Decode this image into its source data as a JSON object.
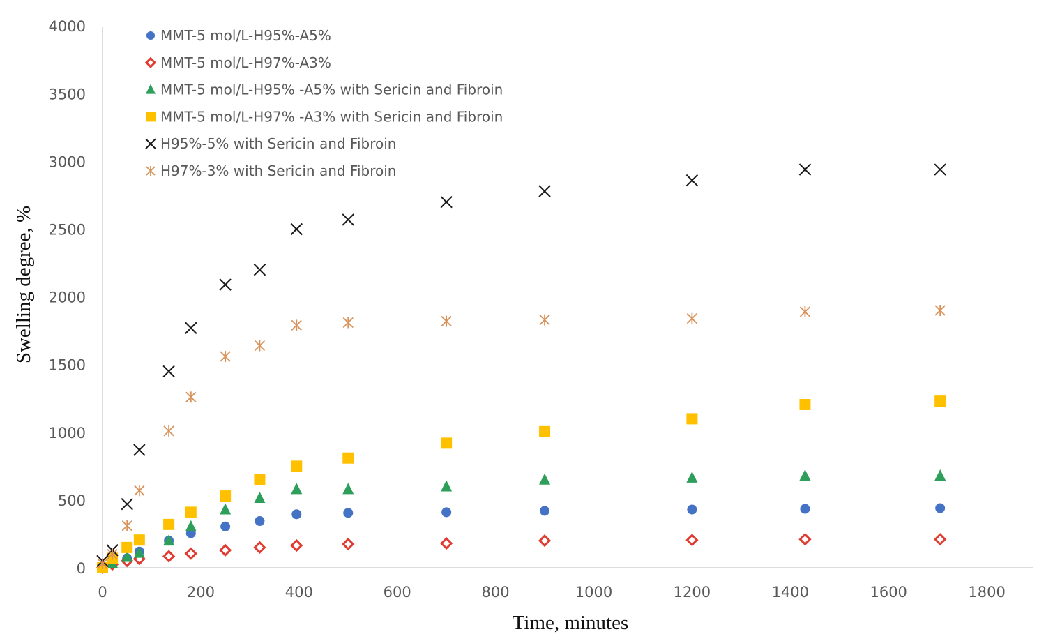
{
  "chart_data": {
    "type": "scatter",
    "xlabel": "Time, minutes",
    "ylabel": "Swelling degree, %",
    "xlim": [
      0,
      1900
    ],
    "ylim": [
      0,
      4000
    ],
    "xticks": [
      "0",
      "200",
      "400",
      "600",
      "800",
      "1000",
      "1200",
      "1400",
      "1600",
      "1800"
    ],
    "yticks": [
      "0",
      "500",
      "1000",
      "1500",
      "2000",
      "2500",
      "3000",
      "3500",
      "4000"
    ],
    "legend_position": "top-left",
    "grid": false,
    "series": [
      {
        "name": "MMT-5 mol/L-H95%-A5%",
        "marker": "circle",
        "color": "#4472C4",
        "x": [
          0,
          20,
          50,
          75,
          135,
          180,
          250,
          320,
          395,
          500,
          700,
          900,
          1200,
          1430,
          1705
        ],
        "y": [
          0,
          40,
          70,
          120,
          200,
          255,
          305,
          345,
          395,
          405,
          410,
          420,
          430,
          435,
          440
        ]
      },
      {
        "name": "MMT-5 mol/L-H97%-A3%",
        "marker": "diamond",
        "color": "#E03C31",
        "x": [
          0,
          20,
          50,
          75,
          135,
          180,
          250,
          320,
          395,
          500,
          700,
          900,
          1200,
          1430,
          1705
        ],
        "y": [
          0,
          25,
          50,
          65,
          85,
          105,
          130,
          150,
          165,
          175,
          180,
          200,
          205,
          210,
          210
        ]
      },
      {
        "name": "MMT-5 mol/L-H95% -A5% with Sericin and Fibroin",
        "marker": "triangle",
        "color": "#2E9E5B",
        "x": [
          0,
          20,
          50,
          75,
          135,
          180,
          250,
          320,
          395,
          500,
          700,
          900,
          1200,
          1430,
          1705
        ],
        "y": [
          0,
          35,
          80,
          110,
          200,
          305,
          430,
          515,
          580,
          580,
          600,
          650,
          665,
          680,
          680
        ]
      },
      {
        "name": "MMT-5 mol/L-H97% -A3% with Sericin and Fibroin",
        "marker": "square",
        "color": "#FFC000",
        "x": [
          0,
          20,
          50,
          75,
          135,
          180,
          250,
          320,
          395,
          500,
          700,
          900,
          1200,
          1430,
          1705
        ],
        "y": [
          0,
          70,
          150,
          205,
          320,
          410,
          530,
          650,
          750,
          810,
          920,
          1005,
          1100,
          1205,
          1230
        ]
      },
      {
        "name": "H95%-5% with Sericin and Fibroin",
        "marker": "x",
        "color": "#1a1a1a",
        "x": [
          0,
          20,
          50,
          75,
          135,
          180,
          250,
          320,
          395,
          500,
          700,
          900,
          1200,
          1430,
          1705
        ],
        "y": [
          50,
          130,
          470,
          870,
          1450,
          1770,
          2090,
          2200,
          2500,
          2570,
          2700,
          2780,
          2860,
          2940,
          2940
        ]
      },
      {
        "name": "H97%-3% with Sericin and Fibroin",
        "marker": "asterisk",
        "color": "#D9925A",
        "x": [
          0,
          20,
          50,
          75,
          135,
          180,
          250,
          320,
          395,
          500,
          700,
          900,
          1200,
          1430,
          1705
        ],
        "y": [
          30,
          100,
          310,
          570,
          1010,
          1260,
          1560,
          1640,
          1790,
          1810,
          1820,
          1830,
          1840,
          1890,
          1900
        ]
      }
    ]
  }
}
